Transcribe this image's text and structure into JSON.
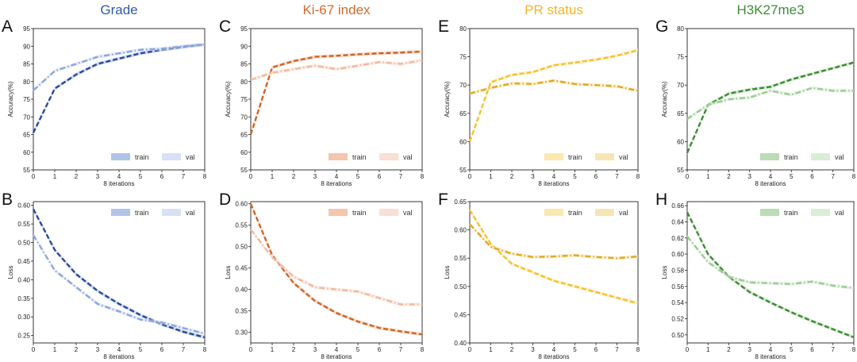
{
  "chart_data": [
    {
      "type": "line",
      "panel": "A",
      "column_title": "Grade",
      "title_color": "#2f5aa8",
      "xlabel": "8 iterations",
      "ylabel": "Accuracy(%)",
      "ylim": [
        55,
        95
      ],
      "yticks": [
        55,
        60,
        65,
        70,
        75,
        80,
        85,
        90,
        95
      ],
      "x": [
        0,
        1,
        2,
        3,
        4,
        5,
        6,
        7,
        8
      ],
      "xticks": [
        0,
        1,
        2,
        3,
        4,
        5,
        6,
        7,
        8
      ],
      "legend_position": "bottom-right",
      "series": [
        {
          "name": "train",
          "style": "dashed",
          "color": "#274a9a",
          "band": "#aabde6",
          "values": [
            65.5,
            78,
            82,
            85,
            86.5,
            88,
            89,
            89.8,
            90.5
          ]
        },
        {
          "name": "val",
          "style": "dashdot",
          "color": "#8ea6de",
          "band": "#d3ddf4",
          "values": [
            77.5,
            83,
            85,
            87,
            88,
            89,
            89.3,
            90,
            90.5
          ]
        }
      ]
    },
    {
      "type": "line",
      "panel": "C",
      "column_title": "Ki-67 index",
      "title_color": "#d4682c",
      "xlabel": "8 iterations",
      "ylabel": "Accuracy(%)",
      "ylim": [
        55,
        95
      ],
      "yticks": [
        55,
        60,
        65,
        70,
        75,
        80,
        85,
        90,
        95
      ],
      "x": [
        0,
        1,
        2,
        3,
        4,
        5,
        6,
        7,
        8
      ],
      "xticks": [
        0,
        1,
        2,
        3,
        4,
        5,
        6,
        7,
        8
      ],
      "legend_position": "bottom-right",
      "series": [
        {
          "name": "train",
          "style": "dashed",
          "color": "#cf6427",
          "band": "#f2c0a4",
          "values": [
            65,
            84,
            85.8,
            87,
            87.3,
            87.7,
            88,
            88.2,
            88.5
          ]
        },
        {
          "name": "val",
          "style": "dashdot",
          "color": "#f3b9a0",
          "band": "#f8dccf",
          "values": [
            80.5,
            82.5,
            83.5,
            84.5,
            83.5,
            84.5,
            85.5,
            85,
            86
          ]
        }
      ]
    },
    {
      "type": "line",
      "panel": "E",
      "column_title": "PR status",
      "title_color": "#f5b324",
      "xlabel": "8 iterations",
      "ylabel": "Accuracy(%)",
      "ylim": [
        55,
        80
      ],
      "yticks": [
        55,
        60,
        65,
        70,
        75,
        80
      ],
      "x": [
        0,
        1,
        2,
        3,
        4,
        5,
        6,
        7,
        8
      ],
      "xticks": [
        0,
        1,
        2,
        3,
        4,
        5,
        6,
        7,
        8
      ],
      "legend_position": "bottom-right",
      "series": [
        {
          "name": "train",
          "style": "dashed",
          "color": "#f7c22f",
          "band": "#fbe6a6",
          "values": [
            60,
            70.5,
            71.8,
            72.3,
            73.5,
            74,
            74.5,
            75.2,
            76.2
          ]
        },
        {
          "name": "val",
          "style": "dashdot",
          "color": "#e3a91e",
          "band": "#f6e2ad",
          "values": [
            68.5,
            69.5,
            70.3,
            70.2,
            70.8,
            70.2,
            70,
            69.8,
            69
          ]
        }
      ]
    },
    {
      "type": "line",
      "panel": "G",
      "column_title": "H3K27me3",
      "title_color": "#3e8e37",
      "xlabel": "8 iterations",
      "ylabel": "Accuracy(%)",
      "ylim": [
        55,
        80
      ],
      "yticks": [
        55,
        60,
        65,
        70,
        75,
        80
      ],
      "x": [
        0,
        1,
        2,
        3,
        4,
        5,
        6,
        7,
        8
      ],
      "xticks": [
        0,
        1,
        2,
        3,
        4,
        5,
        6,
        7,
        8
      ],
      "legend_position": "bottom-right",
      "series": [
        {
          "name": "train",
          "style": "dashed",
          "color": "#3d8b36",
          "band": "#b4d8ad",
          "values": [
            58,
            66.5,
            68.5,
            69.2,
            69.7,
            71,
            72,
            73,
            74
          ]
        },
        {
          "name": "val",
          "style": "dashdot",
          "color": "#9ccc94",
          "band": "#d6ebd2",
          "values": [
            64,
            66.5,
            67.5,
            67.8,
            69,
            68.3,
            69.5,
            69,
            69
          ]
        }
      ]
    },
    {
      "type": "line",
      "panel": "B",
      "column_title": "",
      "xlabel": "8 iterations",
      "ylabel": "Loss",
      "ylim": [
        0.23,
        0.61
      ],
      "yticks": [
        0.25,
        0.3,
        0.35,
        0.4,
        0.45,
        0.5,
        0.55,
        0.6
      ],
      "x": [
        0,
        1,
        2,
        3,
        4,
        5,
        6,
        7,
        8
      ],
      "xticks": [
        0,
        1,
        2,
        3,
        4,
        5,
        6,
        7,
        8
      ],
      "legend_position": "top-right",
      "series": [
        {
          "name": "train",
          "style": "dashed",
          "color": "#274a9a",
          "band": "#aabde6",
          "values": [
            0.59,
            0.48,
            0.415,
            0.37,
            0.335,
            0.305,
            0.28,
            0.26,
            0.245
          ]
        },
        {
          "name": "val",
          "style": "dashdot",
          "color": "#8ea6de",
          "band": "#d3ddf4",
          "values": [
            0.52,
            0.425,
            0.38,
            0.335,
            0.315,
            0.293,
            0.285,
            0.27,
            0.255
          ]
        }
      ]
    },
    {
      "type": "line",
      "panel": "D",
      "column_title": "",
      "xlabel": "8 iterations",
      "ylabel": "Loss",
      "ylim": [
        0.275,
        0.605
      ],
      "yticks": [
        0.3,
        0.35,
        0.4,
        0.45,
        0.5,
        0.55,
        0.6
      ],
      "x": [
        0,
        1,
        2,
        3,
        4,
        5,
        6,
        7,
        8
      ],
      "xticks": [
        0,
        1,
        2,
        3,
        4,
        5,
        6,
        7,
        8
      ],
      "legend_position": "top-right",
      "series": [
        {
          "name": "train",
          "style": "dashed",
          "color": "#cf6427",
          "band": "#f2c0a4",
          "values": [
            0.6,
            0.48,
            0.415,
            0.373,
            0.345,
            0.325,
            0.31,
            0.302,
            0.295
          ]
        },
        {
          "name": "val",
          "style": "dashdot",
          "color": "#f3b9a0",
          "band": "#f8dccf",
          "values": [
            0.54,
            0.475,
            0.43,
            0.405,
            0.4,
            0.395,
            0.38,
            0.365,
            0.365
          ]
        }
      ]
    },
    {
      "type": "line",
      "panel": "F",
      "column_title": "",
      "xlabel": "8 iterations",
      "ylabel": "Loss",
      "ylim": [
        0.4,
        0.65
      ],
      "yticks": [
        0.4,
        0.45,
        0.5,
        0.55,
        0.6,
        0.65
      ],
      "x": [
        0,
        1,
        2,
        3,
        4,
        5,
        6,
        7,
        8
      ],
      "xticks": [
        0,
        1,
        2,
        3,
        4,
        5,
        6,
        7,
        8
      ],
      "legend_position": "top-right",
      "series": [
        {
          "name": "train",
          "style": "dashed",
          "color": "#f7c22f",
          "band": "#fbe6a6",
          "values": [
            0.635,
            0.575,
            0.54,
            0.525,
            0.51,
            0.5,
            0.49,
            0.48,
            0.47
          ]
        },
        {
          "name": "val",
          "style": "dashdot",
          "color": "#e3a91e",
          "band": "#f6e2ad",
          "values": [
            0.61,
            0.57,
            0.558,
            0.552,
            0.553,
            0.555,
            0.552,
            0.55,
            0.553
          ]
        }
      ]
    },
    {
      "type": "line",
      "panel": "H",
      "column_title": "",
      "xlabel": "8 iterations",
      "ylabel": "Loss",
      "ylim": [
        0.49,
        0.665
      ],
      "yticks": [
        0.5,
        0.52,
        0.54,
        0.56,
        0.58,
        0.6,
        0.62,
        0.64,
        0.66
      ],
      "x": [
        0,
        1,
        2,
        3,
        4,
        5,
        6,
        7,
        8
      ],
      "xticks": [
        0,
        1,
        2,
        3,
        4,
        5,
        6,
        7,
        8
      ],
      "legend_position": "top-right",
      "series": [
        {
          "name": "train",
          "style": "dashed",
          "color": "#3d8b36",
          "band": "#b4d8ad",
          "values": [
            0.652,
            0.6,
            0.572,
            0.553,
            0.54,
            0.528,
            0.517,
            0.507,
            0.497
          ]
        },
        {
          "name": "val",
          "style": "dashdot",
          "color": "#9ccc94",
          "band": "#d6ebd2",
          "values": [
            0.622,
            0.59,
            0.572,
            0.565,
            0.564,
            0.563,
            0.566,
            0.561,
            0.558
          ]
        }
      ]
    }
  ]
}
